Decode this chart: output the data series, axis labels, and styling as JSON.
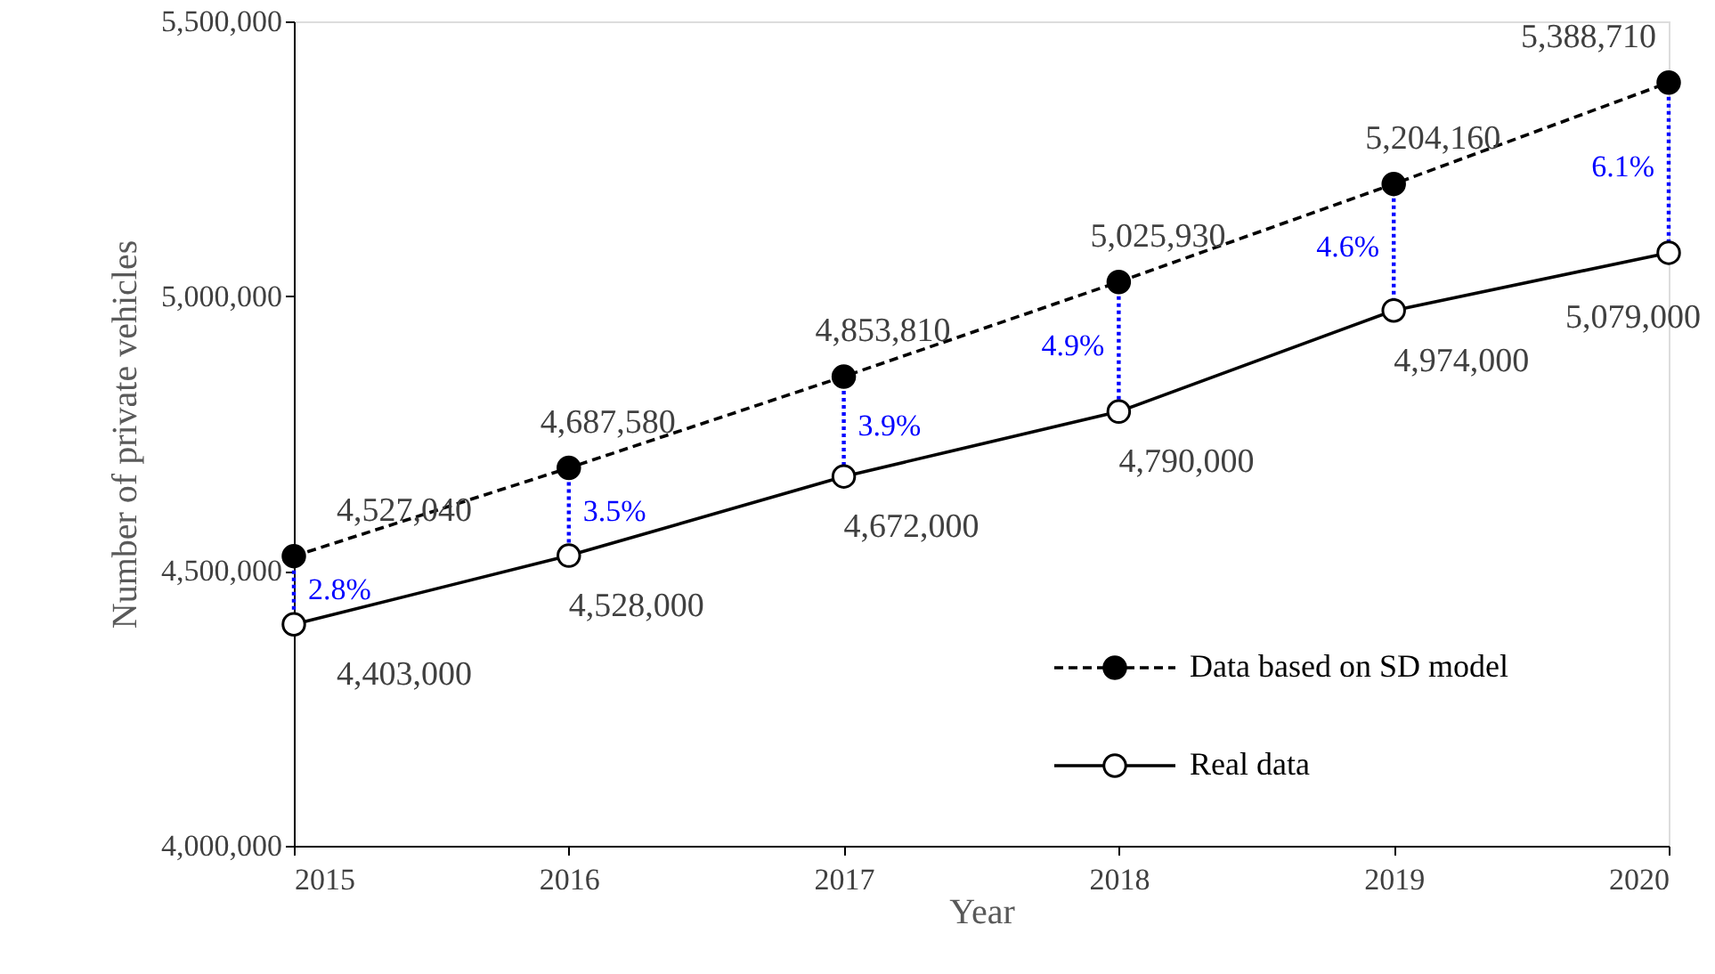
{
  "chart_data": {
    "type": "line",
    "xlabel": "Year",
    "ylabel": "Number of private vehicles",
    "x": [
      2015,
      2016,
      2017,
      2018,
      2019,
      2020
    ],
    "series": [
      {
        "name": "Data based on SD model",
        "color": "#000000",
        "line_style": "dashed",
        "marker": "circle",
        "values": [
          4527040,
          4687580,
          4853810,
          5025930,
          5204160,
          5388710
        ],
        "value_labels": [
          "4,527,040",
          "4,687,580",
          "4,853,810",
          "5,025,930",
          "5,204,160",
          "5,388,710"
        ]
      },
      {
        "name": "Real data",
        "color": "#000000",
        "line_style": "solid",
        "marker": "circle",
        "values": [
          4403000,
          4528000,
          4672000,
          4790000,
          4974000,
          5079000
        ],
        "value_labels": [
          "4,403,000",
          "4,528,000",
          "4,672,000",
          "4,790,000",
          "4,974,000",
          "5,079,000"
        ]
      }
    ],
    "xlim": [
      2015,
      2020
    ],
    "xticks": [
      2015,
      2016,
      2017,
      2018,
      2019,
      2020
    ],
    "ylim": [
      4000000,
      5500000
    ],
    "yticks": [
      {
        "value": 4000000,
        "label": "4,000,000"
      },
      {
        "value": 4500000,
        "label": "4,500,000"
      },
      {
        "value": 5000000,
        "label": "5,000,000"
      },
      {
        "value": 5500000,
        "label": "5,500,000"
      }
    ],
    "grid": false,
    "legend": "bottom right",
    "annotations": [
      "2.8%",
      "3.5%",
      "3.9%",
      "4.9%",
      "4.6%",
      "6.1%"
    ]
  }
}
